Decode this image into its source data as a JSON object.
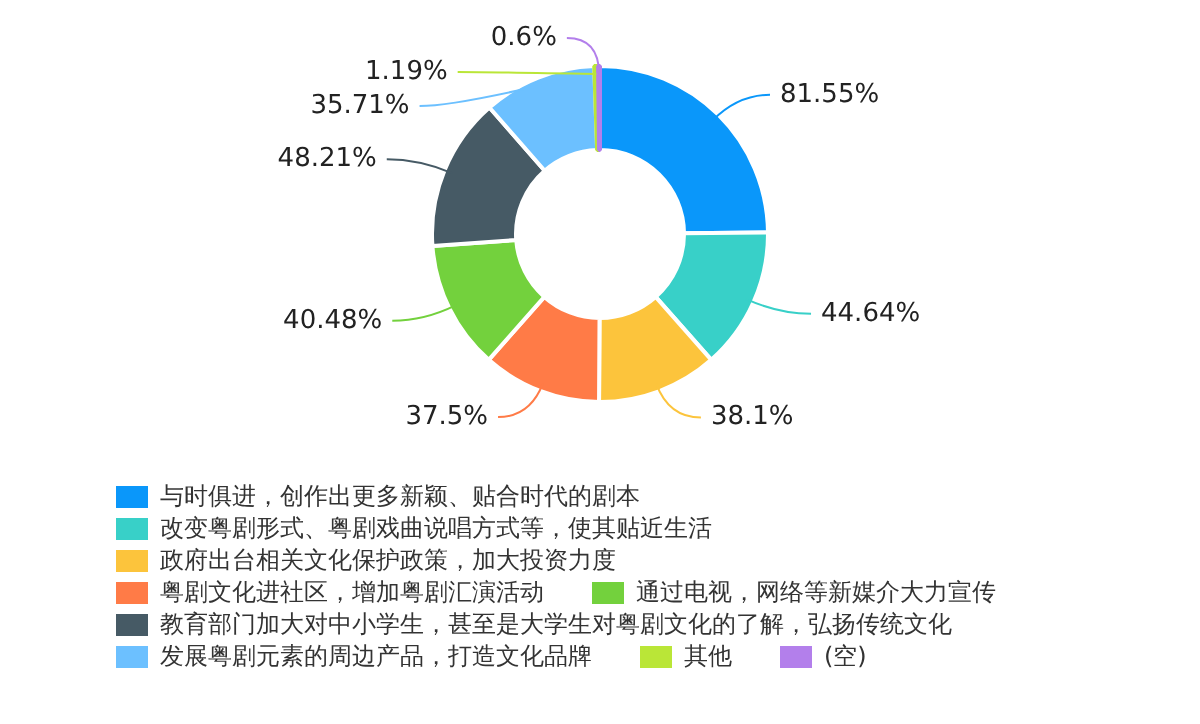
{
  "chart_data": {
    "type": "donut",
    "categories": [
      "与时俱进，创作出更多新颖、贴合时代的剧本",
      "改变粤剧形式、粤剧戏曲说唱方式等，使其贴近生活",
      "政府出台相关文化保护政策，加大投资力度",
      "粤剧文化进社区，增加粤剧汇演活动",
      "通过电视，网络等新媒介大力宣传",
      "教育部门加大对中小学生，甚至是大学生对粤剧文化的了解，弘扬传统文化",
      "发展粤剧元素的周边产品，打造文化品牌",
      "其他",
      "(空)"
    ],
    "values": [
      81.55,
      44.64,
      38.1,
      37.5,
      40.48,
      48.21,
      35.71,
      1.19,
      0.6
    ],
    "value_labels": [
      "81.55%",
      "44.64%",
      "38.1%",
      "37.5%",
      "40.48%",
      "48.21%",
      "35.71%",
      "1.19%",
      "0.6%"
    ],
    "colors": [
      "#0a97fa",
      "#38d0c8",
      "#fcc43c",
      "#ff7b47",
      "#73d13d",
      "#465a65",
      "#6cc0ff",
      "#bae637",
      "#b37feb"
    ],
    "legend": "bottom"
  }
}
